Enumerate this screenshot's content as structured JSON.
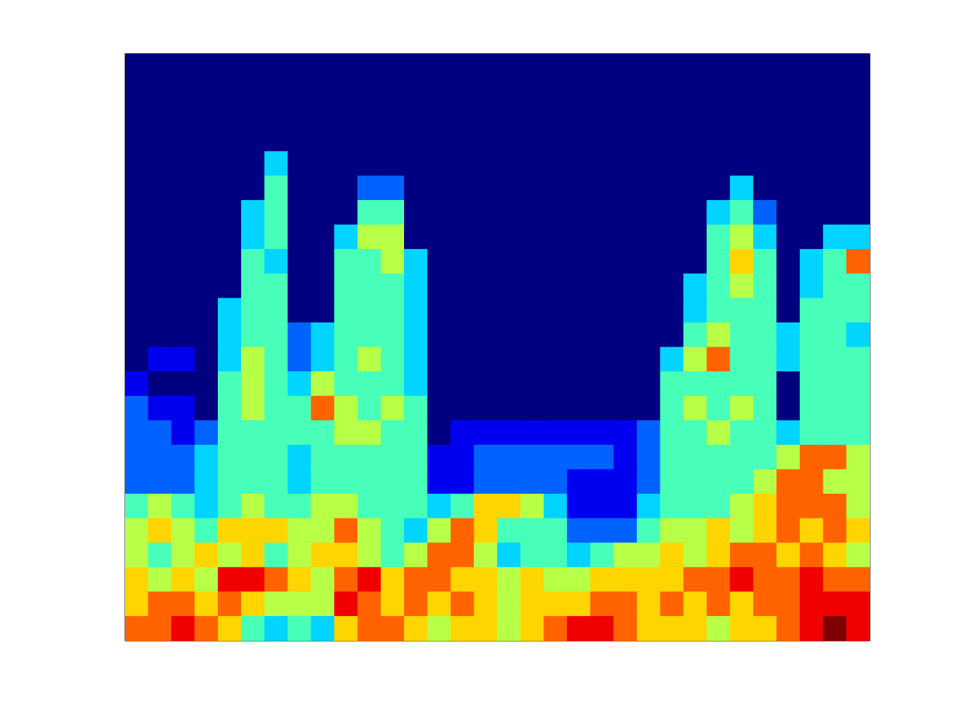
{
  "chart_data": {
    "type": "heatmap",
    "xlim": [
      0,
      32
    ],
    "ylim": [
      0,
      24
    ],
    "zlim": [
      0,
      9
    ],
    "tick_labels": false,
    "cells": [
      [
        0,
        0,
        0,
        0,
        0,
        0,
        0,
        0,
        0,
        0,
        0,
        0,
        0,
        0,
        0,
        0,
        0,
        0,
        0,
        0,
        0,
        0,
        0,
        0,
        0,
        0,
        0,
        0,
        0,
        0,
        0,
        0
      ],
      [
        0,
        0,
        0,
        0,
        0,
        0,
        0,
        0,
        0,
        0,
        0,
        0,
        0,
        0,
        0,
        0,
        0,
        0,
        0,
        0,
        0,
        0,
        0,
        0,
        0,
        0,
        0,
        0,
        0,
        0,
        0,
        0
      ],
      [
        0,
        0,
        0,
        0,
        0,
        0,
        0,
        0,
        0,
        0,
        0,
        0,
        0,
        0,
        0,
        0,
        0,
        0,
        0,
        0,
        0,
        0,
        0,
        0,
        0,
        0,
        0,
        0,
        0,
        0,
        0,
        0
      ],
      [
        0,
        0,
        0,
        0,
        0,
        0,
        0,
        0,
        0,
        0,
        0,
        0,
        0,
        0,
        0,
        0,
        0,
        0,
        0,
        0,
        0,
        0,
        0,
        0,
        0,
        0,
        0,
        0,
        0,
        0,
        0,
        0
      ],
      [
        0,
        0,
        0,
        0,
        0,
        0,
        3,
        0,
        0,
        0,
        0,
        0,
        0,
        0,
        0,
        0,
        0,
        0,
        0,
        0,
        0,
        0,
        0,
        0,
        0,
        0,
        0,
        0,
        0,
        0,
        0,
        0
      ],
      [
        0,
        0,
        0,
        0,
        0,
        0,
        4,
        0,
        0,
        0,
        2,
        2,
        0,
        0,
        0,
        0,
        0,
        0,
        0,
        0,
        0,
        0,
        0,
        0,
        0,
        0,
        3,
        0,
        0,
        0,
        0,
        0
      ],
      [
        0,
        0,
        0,
        0,
        0,
        3,
        4,
        0,
        0,
        0,
        4,
        4,
        0,
        0,
        0,
        0,
        0,
        0,
        0,
        0,
        0,
        0,
        0,
        0,
        0,
        3,
        4,
        2,
        0,
        0,
        0,
        0
      ],
      [
        0,
        0,
        0,
        0,
        0,
        3,
        4,
        0,
        0,
        3,
        5,
        5,
        0,
        0,
        0,
        0,
        0,
        0,
        0,
        0,
        0,
        0,
        0,
        0,
        0,
        4,
        5,
        3,
        0,
        0,
        3,
        3
      ],
      [
        0,
        0,
        0,
        0,
        0,
        4,
        3,
        0,
        0,
        4,
        4,
        5,
        3,
        0,
        0,
        0,
        0,
        0,
        0,
        0,
        0,
        0,
        0,
        0,
        0,
        4,
        6,
        4,
        0,
        3,
        4,
        7
      ],
      [
        0,
        0,
        0,
        0,
        0,
        4,
        4,
        0,
        0,
        4,
        4,
        4,
        3,
        0,
        0,
        0,
        0,
        0,
        0,
        0,
        0,
        0,
        0,
        0,
        3,
        4,
        5,
        4,
        0,
        3,
        4,
        4
      ],
      [
        0,
        0,
        0,
        0,
        3,
        4,
        4,
        0,
        0,
        4,
        4,
        4,
        3,
        0,
        0,
        0,
        0,
        0,
        0,
        0,
        0,
        0,
        0,
        0,
        3,
        4,
        4,
        4,
        0,
        4,
        4,
        4
      ],
      [
        0,
        0,
        0,
        0,
        3,
        4,
        4,
        2,
        3,
        4,
        4,
        4,
        3,
        0,
        0,
        0,
        0,
        0,
        0,
        0,
        0,
        0,
        0,
        0,
        4,
        5,
        4,
        4,
        3,
        4,
        4,
        3
      ],
      [
        0,
        1,
        1,
        0,
        3,
        5,
        4,
        2,
        3,
        4,
        5,
        4,
        3,
        0,
        0,
        0,
        0,
        0,
        0,
        0,
        0,
        0,
        0,
        3,
        5,
        7,
        4,
        4,
        3,
        4,
        4,
        4
      ],
      [
        1,
        0,
        0,
        0,
        4,
        5,
        4,
        3,
        5,
        4,
        4,
        4,
        3,
        0,
        0,
        0,
        0,
        0,
        0,
        0,
        0,
        0,
        0,
        4,
        4,
        4,
        4,
        4,
        0,
        4,
        4,
        4
      ],
      [
        2,
        1,
        1,
        0,
        4,
        5,
        4,
        4,
        7,
        5,
        4,
        5,
        4,
        0,
        0,
        0,
        0,
        0,
        0,
        0,
        0,
        0,
        0,
        4,
        5,
        4,
        5,
        4,
        0,
        4,
        4,
        4
      ],
      [
        2,
        2,
        1,
        2,
        4,
        4,
        4,
        4,
        4,
        5,
        5,
        4,
        4,
        0,
        1,
        1,
        1,
        1,
        1,
        1,
        1,
        1,
        2,
        4,
        4,
        5,
        4,
        4,
        3,
        4,
        4,
        4
      ],
      [
        2,
        2,
        2,
        3,
        4,
        4,
        4,
        3,
        4,
        4,
        4,
        4,
        4,
        1,
        1,
        2,
        2,
        2,
        2,
        2,
        2,
        1,
        2,
        4,
        4,
        4,
        4,
        4,
        5,
        7,
        7,
        5
      ],
      [
        2,
        2,
        2,
        3,
        4,
        4,
        4,
        3,
        4,
        4,
        4,
        4,
        4,
        1,
        1,
        2,
        2,
        2,
        2,
        1,
        1,
        1,
        2,
        4,
        4,
        4,
        4,
        5,
        7,
        7,
        5,
        5
      ],
      [
        4,
        5,
        4,
        3,
        4,
        5,
        4,
        4,
        5,
        5,
        4,
        4,
        4,
        3,
        4,
        6,
        6,
        5,
        3,
        1,
        1,
        1,
        3,
        4,
        4,
        4,
        5,
        6,
        7,
        7,
        7,
        5
      ],
      [
        5,
        6,
        5,
        4,
        6,
        6,
        6,
        5,
        5,
        7,
        5,
        4,
        3,
        5,
        7,
        6,
        4,
        4,
        4,
        2,
        2,
        2,
        4,
        5,
        5,
        6,
        5,
        6,
        7,
        6,
        7,
        6
      ],
      [
        5,
        4,
        5,
        6,
        5,
        6,
        4,
        5,
        6,
        6,
        5,
        4,
        5,
        7,
        7,
        5,
        3,
        4,
        4,
        3,
        4,
        5,
        5,
        6,
        5,
        6,
        7,
        7,
        6,
        7,
        6,
        5
      ],
      [
        6,
        5,
        6,
        5,
        8,
        8,
        7,
        6,
        5,
        7,
        8,
        6,
        7,
        7,
        6,
        6,
        5,
        6,
        5,
        5,
        6,
        6,
        6,
        6,
        7,
        7,
        8,
        7,
        7,
        8,
        7,
        7
      ],
      [
        6,
        7,
        7,
        6,
        7,
        6,
        5,
        5,
        5,
        8,
        7,
        6,
        7,
        6,
        7,
        6,
        5,
        6,
        6,
        6,
        7,
        7,
        6,
        7,
        6,
        7,
        6,
        7,
        7,
        8,
        8,
        8
      ],
      [
        7,
        7,
        8,
        7,
        6,
        4,
        3,
        4,
        3,
        6,
        7,
        7,
        6,
        5,
        6,
        6,
        5,
        6,
        7,
        8,
        8,
        7,
        6,
        6,
        6,
        5,
        6,
        6,
        7,
        8,
        9,
        8
      ]
    ]
  }
}
